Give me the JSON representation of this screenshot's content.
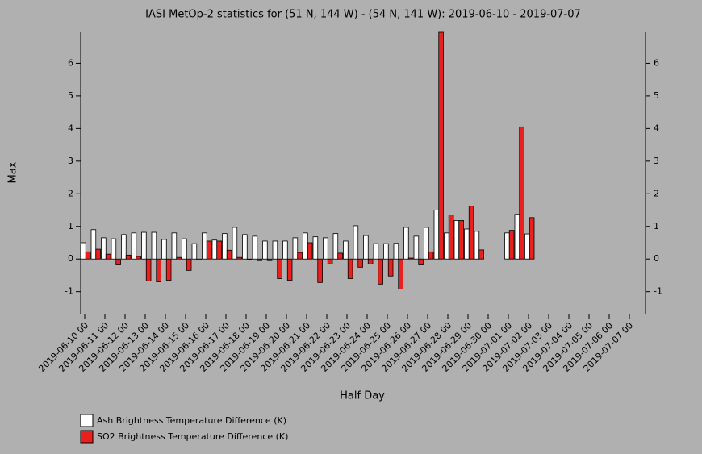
{
  "chart_data": {
    "type": "bar",
    "title": "IASI MetOp-2 statistics for (51 N, 144 W) - (54 N, 141 W): 2019-06-10 - 2019-07-07",
    "x_label": "Half Day",
    "y_label": "Max",
    "categories": [
      "2019-06-10 00",
      null,
      "2019-06-11 00",
      null,
      "2019-06-12 00",
      null,
      "2019-06-13 00",
      null,
      "2019-06-14 00",
      null,
      "2019-06-15 00",
      null,
      "2019-06-16 00",
      null,
      "2019-06-17 00",
      null,
      "2019-06-18 00",
      null,
      "2019-06-19 00",
      null,
      "2019-06-20 00",
      null,
      "2019-06-21 00",
      null,
      "2019-06-22 00",
      null,
      "2019-06-23 00",
      null,
      "2019-06-24 00",
      null,
      "2019-06-25 00",
      null,
      "2019-06-26 00",
      null,
      "2019-06-27 00",
      null,
      "2019-06-28 00",
      null,
      "2019-06-29 00",
      null,
      "2019-06-30 00",
      null,
      "2019-07-01 00",
      null,
      "2019-07-02 00",
      null,
      "2019-07-03 00",
      null,
      "2019-07-04 00",
      null,
      "2019-07-05 00",
      null,
      "2019-07-06 00",
      null,
      "2019-07-07 00",
      null
    ],
    "series": [
      {
        "name": "Ash Brightness Temperature Difference (K)",
        "color": "#ffffff",
        "values": [
          0.5,
          0.9,
          0.65,
          0.62,
          0.75,
          0.8,
          0.82,
          0.82,
          0.6,
          0.8,
          0.62,
          0.47,
          0.8,
          0.58,
          0.78,
          0.97,
          0.75,
          0.7,
          0.55,
          0.55,
          0.55,
          0.65,
          0.8,
          0.68,
          0.65,
          0.78,
          0.55,
          1.02,
          0.72,
          0.47,
          0.47,
          0.48,
          0.97,
          0.7,
          0.97,
          1.5,
          0.8,
          1.18,
          0.92,
          0.85,
          null,
          null,
          0.8,
          1.37,
          0.77,
          null,
          null,
          null,
          null,
          null,
          null,
          null,
          null,
          null,
          null,
          null
        ]
      },
      {
        "name": "SO2 Brightness Temperature Difference (K)",
        "color": "#e8211f",
        "values": [
          0.22,
          0.3,
          0.15,
          -0.18,
          0.12,
          0.08,
          -0.67,
          -0.7,
          -0.65,
          0.05,
          -0.35,
          -0.03,
          0.55,
          0.55,
          0.27,
          0.05,
          -0.02,
          -0.05,
          -0.05,
          -0.6,
          -0.65,
          0.2,
          0.5,
          -0.72,
          -0.15,
          0.18,
          -0.6,
          -0.25,
          -0.15,
          -0.77,
          -0.52,
          -0.92,
          0.03,
          -0.18,
          0.22,
          6.95,
          1.35,
          1.18,
          1.62,
          0.28,
          null,
          null,
          0.88,
          4.05,
          1.27,
          null,
          null,
          null,
          null,
          null,
          null,
          null,
          null,
          null,
          null,
          null
        ]
      }
    ],
    "ylim": [
      -1.7,
      6.95
    ],
    "yticks": [
      -1,
      0,
      1,
      2,
      3,
      4,
      5,
      6
    ]
  }
}
